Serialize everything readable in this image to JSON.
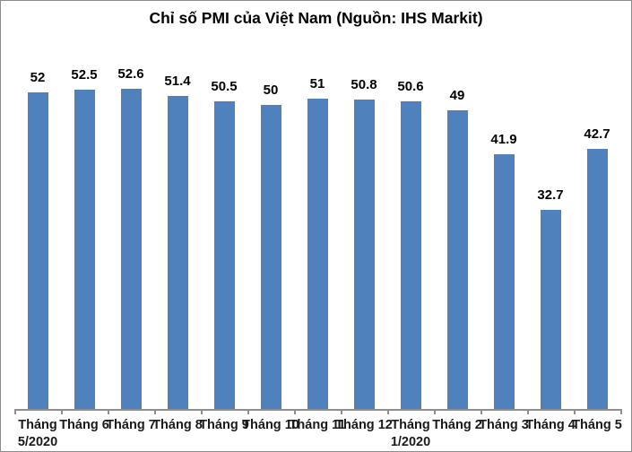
{
  "chart": {
    "title": "Chỉ số PMI của Việt Nam (Nguồn: IHS Markit)",
    "bar_color": "#4f81bd",
    "axis_color": "#8f8f8f",
    "border_color": "#8c8c8c",
    "background_color": "#ffffff",
    "label_color": "#000000"
  },
  "chart_data": {
    "type": "bar",
    "title": "Chỉ số PMI của Việt Nam (Nguồn: IHS Markit)",
    "categories": [
      "Tháng\n5/2020",
      "Tháng 6",
      "Tháng 7",
      "Tháng 8",
      "Tháng 9",
      "Tháng 10",
      "Tháng 11",
      "Tháng 12",
      "Tháng\n1/2020",
      "Tháng 2",
      "Tháng 3",
      "Tháng 4",
      "Tháng 5"
    ],
    "values": [
      52,
      52.5,
      52.6,
      51.4,
      50.5,
      50,
      51,
      50.8,
      50.6,
      49,
      41.9,
      32.7,
      42.7
    ],
    "data_labels": [
      "52",
      "52.5",
      "52.6",
      "51.4",
      "50.5",
      "50",
      "51",
      "50.8",
      "50.6",
      "49",
      "41.9",
      "32.7",
      "42.7"
    ],
    "xlabel": "",
    "ylabel": "",
    "ylim": [
      0,
      55
    ],
    "grid": false,
    "legend": false,
    "y_axis_visible": false,
    "series_color": "#4f81bd"
  }
}
